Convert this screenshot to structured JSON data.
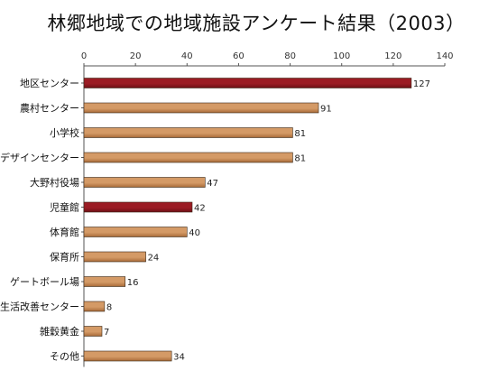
{
  "chart_data": {
    "type": "bar",
    "orientation": "horizontal",
    "title": "林郷地域での地域施設アンケート結果（2003）",
    "xlim": [
      0,
      140
    ],
    "xticks": [
      0,
      20,
      40,
      60,
      80,
      100,
      120,
      140
    ],
    "categories": [
      "地区センター",
      "農村センター",
      "小学校",
      "デザインセンター",
      "大野村役場",
      "児童館",
      "体育館",
      "保育所",
      "ゲートボール場",
      "生活改善センター",
      "雑穀黄金",
      "その他"
    ],
    "values": [
      127,
      91,
      81,
      81,
      47,
      42,
      40,
      24,
      16,
      8,
      7,
      34
    ],
    "highlighted": [
      "地区センター",
      "児童館"
    ],
    "colors": {
      "bar": "#d49a66",
      "bar_dark": "#a86a38",
      "highlight": "#9b1c24",
      "highlight_dark": "#6e1016",
      "axis": "#555555"
    },
    "grid": false,
    "legend": "none"
  }
}
